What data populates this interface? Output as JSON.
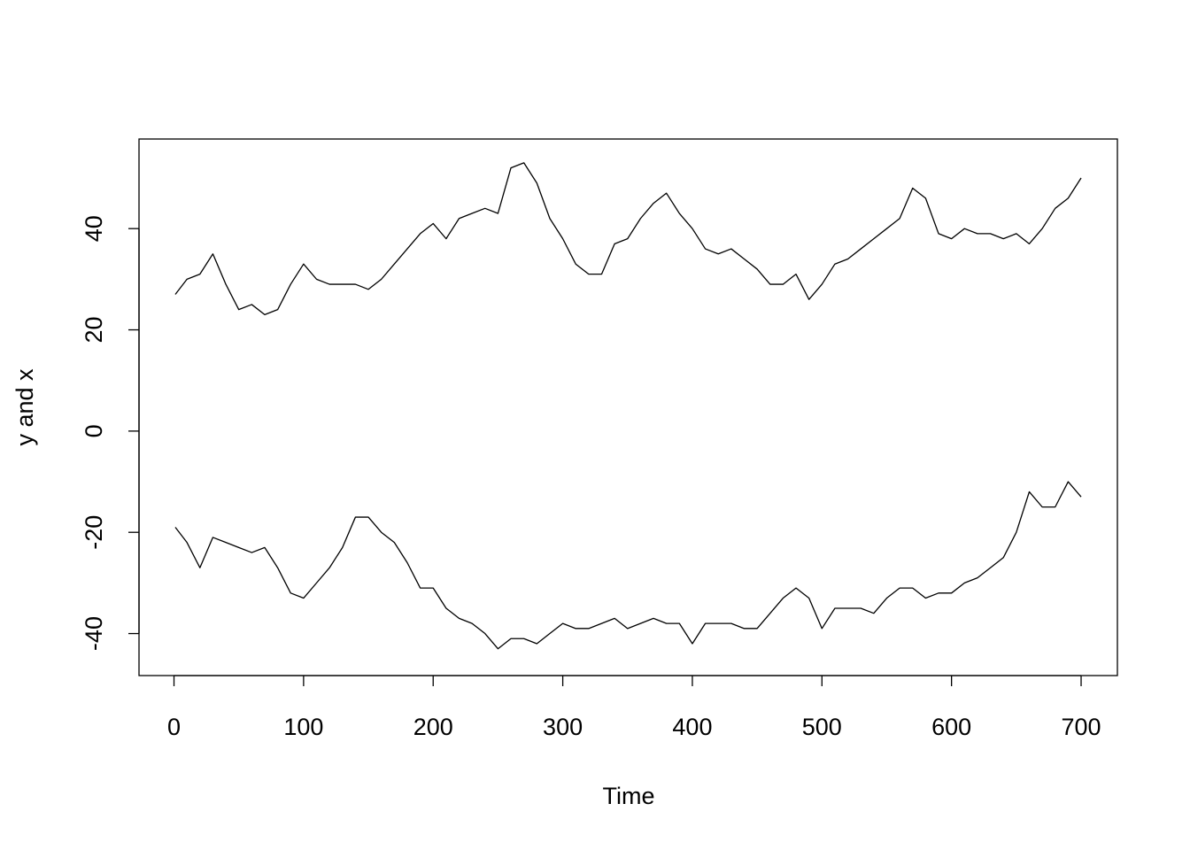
{
  "chart_data": {
    "type": "line",
    "x_label": "Time",
    "y_label": "y and x",
    "x": [
      1,
      10,
      20,
      30,
      40,
      50,
      60,
      70,
      80,
      90,
      100,
      110,
      120,
      130,
      140,
      150,
      160,
      170,
      180,
      190,
      200,
      210,
      220,
      230,
      240,
      250,
      260,
      270,
      280,
      290,
      300,
      310,
      320,
      330,
      340,
      350,
      360,
      370,
      380,
      390,
      400,
      410,
      420,
      430,
      440,
      450,
      460,
      470,
      480,
      490,
      500,
      510,
      520,
      530,
      540,
      550,
      560,
      570,
      580,
      590,
      600,
      610,
      620,
      630,
      640,
      650,
      660,
      670,
      680,
      690,
      700
    ],
    "series": [
      {
        "color": "#000000",
        "values": [
          27,
          30,
          31,
          35,
          29,
          24,
          25,
          23,
          24,
          29,
          33,
          30,
          29,
          29,
          29,
          28,
          30,
          33,
          36,
          39,
          41,
          38,
          42,
          43,
          44,
          43,
          52,
          53,
          49,
          42,
          38,
          33,
          31,
          31,
          37,
          38,
          42,
          45,
          47,
          43,
          40,
          36,
          35,
          36,
          34,
          32,
          29,
          29,
          31,
          26,
          29,
          33,
          34,
          36,
          38,
          40,
          42,
          48,
          46,
          39,
          38,
          40,
          39,
          39,
          38,
          39,
          37,
          40,
          44,
          46,
          50
        ]
      },
      {
        "color": "#000000",
        "values": [
          -19,
          -22,
          -27,
          -21,
          -22,
          -23,
          -24,
          -23,
          -27,
          -32,
          -33,
          -30,
          -27,
          -23,
          -17,
          -17,
          -20,
          -22,
          -26,
          -31,
          -31,
          -35,
          -37,
          -38,
          -40,
          -43,
          -41,
          -41,
          -42,
          -40,
          -38,
          -39,
          -39,
          -38,
          -37,
          -39,
          -38,
          -37,
          -38,
          -38,
          -42,
          -38,
          -38,
          -38,
          -39,
          -39,
          -36,
          -33,
          -31,
          -33,
          -39,
          -35,
          -35,
          -35,
          -36,
          -33,
          -31,
          -31,
          -33,
          -32,
          -32,
          -30,
          -29,
          -27,
          -25,
          -20,
          -12,
          -15,
          -15,
          -10,
          -13
        ]
      }
    ],
    "xlim": [
      -27,
      728
    ],
    "ylim": [
      -48.3,
      57.7
    ],
    "xticks": [
      0,
      100,
      200,
      300,
      400,
      500,
      600,
      700
    ],
    "yticks": [
      -40,
      -20,
      0,
      20,
      40
    ]
  }
}
